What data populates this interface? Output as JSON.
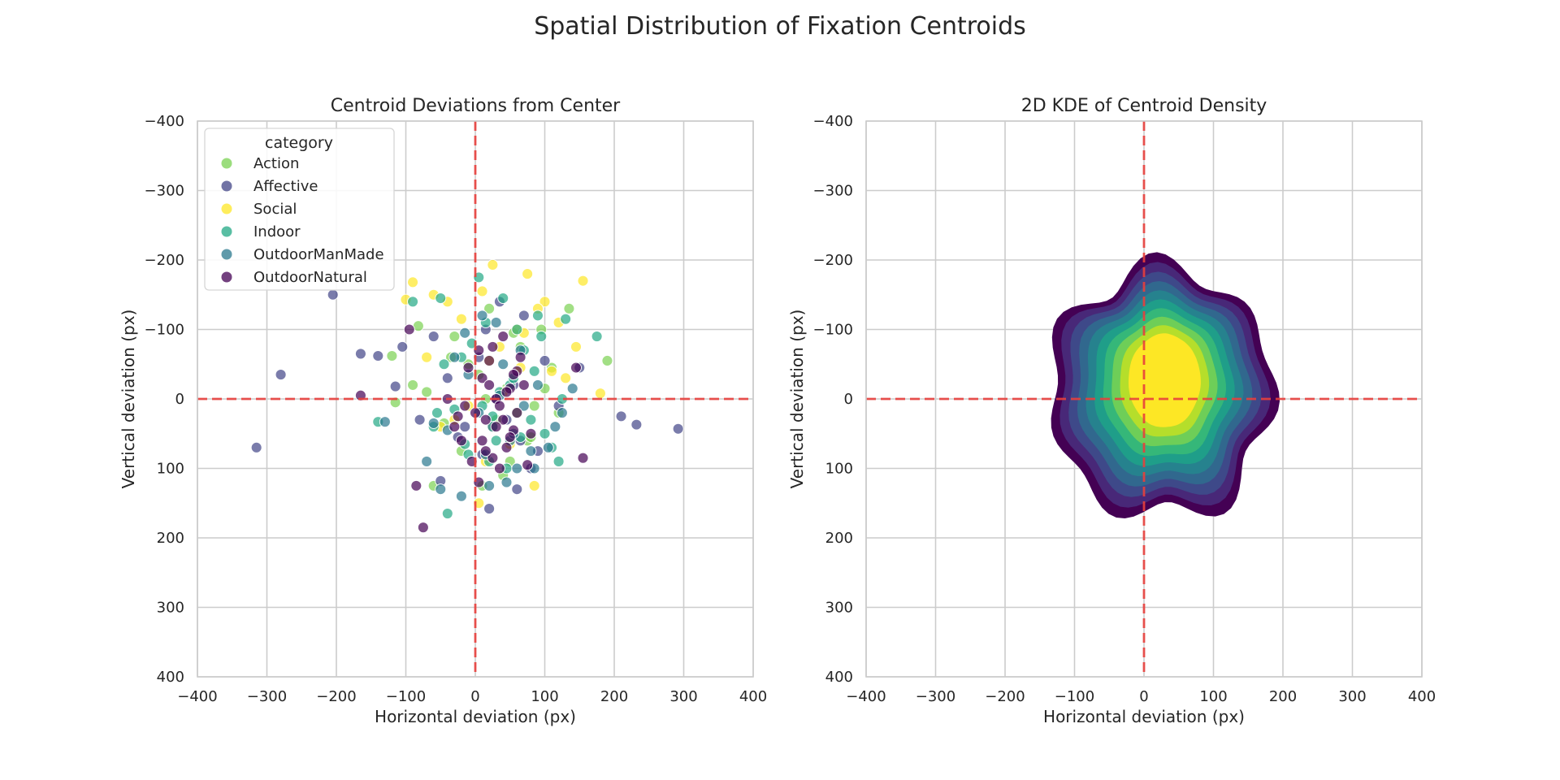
{
  "figure_title": "Spatial Distribution of Fixation Centroids",
  "colors": {
    "Action": "#7ad151",
    "Affective": "#414487",
    "Social": "#fde725",
    "Indoor": "#22a884",
    "OutdoorManMade": "#2a788e",
    "OutdoorNatural": "#440154",
    "reference_line": "#e8403c",
    "kde_levels": [
      "#440154",
      "#482878",
      "#3e4989",
      "#31688e",
      "#26828e",
      "#1f9e89",
      "#35b779",
      "#6ece58",
      "#b5de2b",
      "#fde725"
    ]
  },
  "chart_data": [
    {
      "type": "scatter",
      "title": "Centroid Deviations from Center",
      "xlabel": "Horizontal deviation (px)",
      "ylabel": "Vertical deviation (px)",
      "xlim": [
        -400,
        400
      ],
      "ylim": [
        400,
        -400
      ],
      "y_inverted": true,
      "xticks": [
        -400,
        -300,
        -200,
        -100,
        0,
        100,
        200,
        300,
        400
      ],
      "yticks": [
        -400,
        -300,
        -200,
        -100,
        0,
        100,
        200,
        300,
        400
      ],
      "xtick_labels": [
        "−400",
        "−300",
        "−200",
        "−100",
        "0",
        "100",
        "200",
        "300",
        "400"
      ],
      "ytick_labels": [
        "−400",
        "−300",
        "−200",
        "−100",
        "0",
        "100",
        "200",
        "300",
        "400"
      ],
      "grid": true,
      "reference_lines": {
        "x": 0,
        "y": 0,
        "style": "dashed"
      },
      "legend": {
        "title": "category",
        "position": "top-left",
        "entries": [
          "Action",
          "Affective",
          "Social",
          "Indoor",
          "OutdoorManMade",
          "OutdoorNatural"
        ]
      },
      "series": [
        {
          "name": "Action",
          "x": [
            -82,
            -120,
            -115,
            -35,
            20,
            60,
            135,
            190,
            95,
            -60,
            10,
            55,
            120,
            -20,
            40,
            -90,
            75,
            30,
            -10,
            100,
            65,
            -45,
            15,
            85,
            5,
            -70,
            110,
            50,
            -30,
            25,
            45,
            80
          ],
          "y": [
            -105,
            -62,
            5,
            -60,
            -130,
            20,
            -130,
            -55,
            -100,
            125,
            125,
            -95,
            20,
            75,
            110,
            -20,
            60,
            30,
            -50,
            -15,
            -75,
            35,
            0,
            10,
            -35,
            -10,
            -45,
            90,
            -90,
            40,
            -15,
            55
          ]
        },
        {
          "name": "Affective",
          "x": [
            -205,
            -280,
            -315,
            -165,
            -140,
            -115,
            -105,
            210,
            232,
            292,
            20,
            60,
            -50,
            45,
            100,
            -80,
            70,
            10,
            35,
            -25,
            150,
            120,
            -60,
            80,
            5,
            -15,
            55,
            90,
            30,
            -40,
            65,
            15
          ],
          "y": [
            -150,
            -35,
            70,
            -65,
            -62,
            -18,
            -75,
            25,
            37,
            43,
            158,
            130,
            118,
            30,
            -55,
            30,
            -120,
            80,
            -140,
            55,
            -45,
            10,
            -90,
            100,
            -60,
            40,
            -20,
            75,
            0,
            -30,
            60,
            -100
          ],
          "legend_label": "Affective"
        },
        {
          "name": "Social",
          "x": [
            -90,
            -60,
            -100,
            25,
            75,
            155,
            100,
            145,
            180,
            -40,
            10,
            60,
            -20,
            35,
            90,
            120,
            -70,
            5,
            50,
            -10,
            130,
            85,
            20,
            65,
            -50,
            40,
            110,
            -30,
            15,
            70
          ],
          "y": [
            -168,
            -150,
            -143,
            -193,
            -180,
            -170,
            -140,
            -75,
            -8,
            -140,
            -155,
            -100,
            -115,
            -75,
            -130,
            -110,
            -60,
            150,
            65,
            10,
            -30,
            125,
            -55,
            -45,
            40,
            -10,
            -40,
            30,
            90,
            -95
          ]
        },
        {
          "name": "Indoor",
          "x": [
            -90,
            -50,
            -140,
            130,
            175,
            5,
            40,
            90,
            -40,
            120,
            -60,
            15,
            60,
            -20,
            85,
            30,
            -10,
            110,
            50,
            -30,
            70,
            25,
            -5,
            100,
            45,
            -45,
            80,
            10,
            55,
            -15,
            35,
            65,
            20,
            95,
            -55,
            125
          ],
          "y": [
            -140,
            -145,
            33,
            -115,
            -90,
            -175,
            -145,
            -120,
            165,
            90,
            40,
            -110,
            -100,
            -60,
            -40,
            60,
            80,
            70,
            -20,
            15,
            -70,
            25,
            -80,
            50,
            100,
            -50,
            30,
            10,
            -30,
            65,
            -10,
            55,
            90,
            -90,
            20,
            0
          ],
          "legend_label": "Indoor"
        },
        {
          "name": "OutdoorManMade",
          "x": [
            -70,
            -50,
            -130,
            45,
            105,
            115,
            125,
            140,
            20,
            60,
            -20,
            80,
            30,
            -40,
            10,
            50,
            -10,
            70,
            40,
            -30,
            25,
            90,
            5,
            -60,
            65,
            15,
            35,
            -15,
            55,
            85
          ],
          "y": [
            90,
            130,
            33,
            120,
            70,
            40,
            20,
            -15,
            125,
            100,
            140,
            75,
            -110,
            45,
            -120,
            60,
            -35,
            10,
            -50,
            -60,
            40,
            -20,
            20,
            35,
            -70,
            80,
            -5,
            -95,
            50,
            100
          ],
          "legend_label": "OutdoorManMade"
        },
        {
          "name": "OutdoorNatural",
          "x": [
            -75,
            -85,
            -95,
            -165,
            155,
            145,
            -10,
            5,
            20,
            40,
            60,
            70,
            -30,
            10,
            30,
            50,
            -20,
            0,
            15,
            35,
            55,
            75,
            -40,
            25,
            45,
            65,
            -5,
            20,
            40,
            5,
            -15,
            30,
            50,
            10,
            25,
            45,
            60,
            -25,
            15,
            35,
            55,
            80
          ],
          "y": [
            185,
            125,
            -100,
            -5,
            85,
            -45,
            -45,
            -70,
            -55,
            -90,
            -40,
            -20,
            40,
            -30,
            0,
            -15,
            60,
            20,
            30,
            10,
            45,
            95,
            0,
            -75,
            70,
            -60,
            90,
            -20,
            30,
            120,
            10,
            40,
            55,
            60,
            85,
            -10,
            20,
            25,
            75,
            100,
            -35,
            50
          ]
        }
      ]
    },
    {
      "type": "heatmap",
      "subtype": "kde_filled_contour",
      "title": "2D KDE of Centroid Density",
      "xlabel": "Horizontal deviation (px)",
      "ylabel": "Vertical deviation (px)",
      "xlim": [
        -400,
        400
      ],
      "ylim": [
        400,
        -400
      ],
      "y_inverted": true,
      "xticks": [
        -400,
        -300,
        -200,
        -100,
        0,
        100,
        200,
        300,
        400
      ],
      "yticks": [
        -400,
        -300,
        -200,
        -100,
        0,
        100,
        200,
        300,
        400
      ],
      "xtick_labels": [
        "−400",
        "−300",
        "−200",
        "−100",
        "0",
        "100",
        "200",
        "300",
        "400"
      ],
      "ytick_labels": [
        "−400",
        "−300",
        "−200",
        "−100",
        "0",
        "100",
        "200",
        "300",
        "400"
      ],
      "grid": true,
      "reference_lines": {
        "x": 0,
        "y": 0,
        "style": "dashed"
      },
      "density_peak": {
        "x": 25,
        "y": -10
      },
      "colormap": "viridis",
      "levels": 10
    }
  ]
}
